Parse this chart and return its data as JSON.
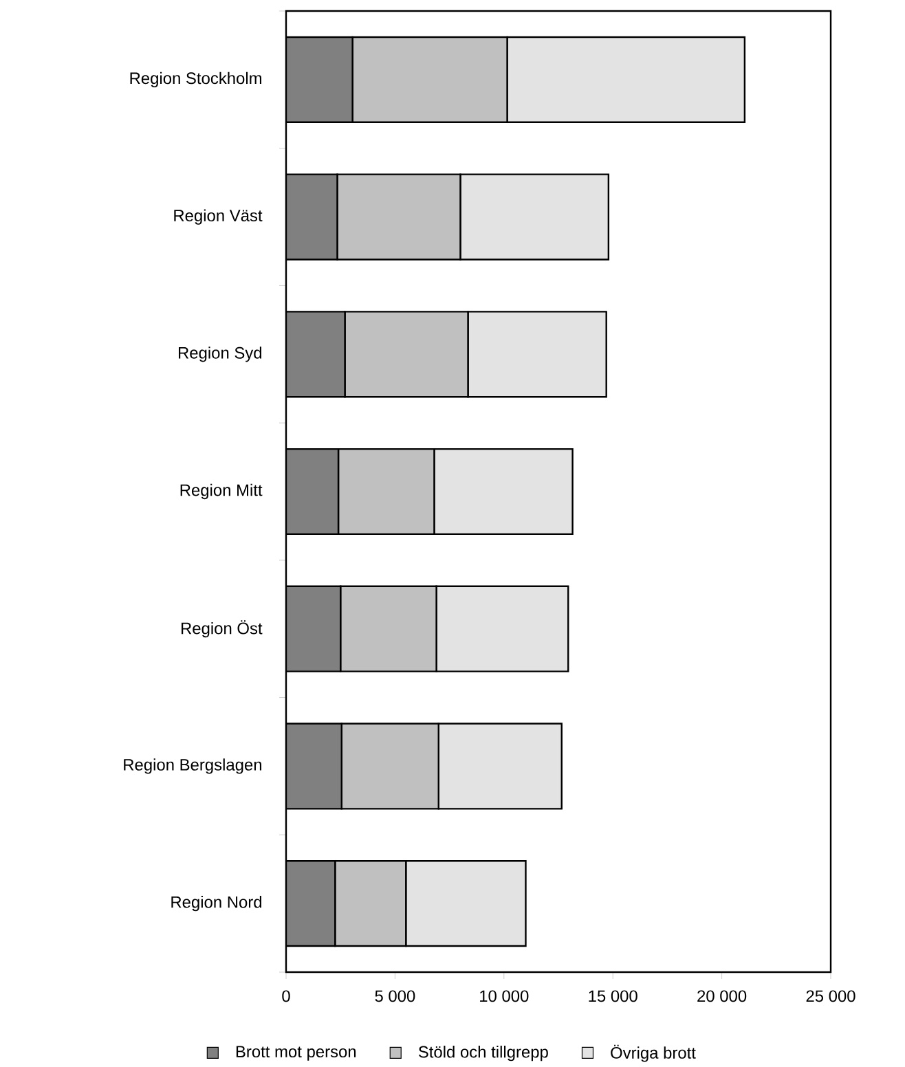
{
  "chart_data": {
    "type": "bar",
    "orientation": "horizontal",
    "stacked": true,
    "categories": [
      "Region Stockholm",
      "Region Väst",
      "Region Syd",
      "Region Mitt",
      "Region Öst",
      "Region Bergslagen",
      "Region Nord"
    ],
    "series": [
      {
        "name": "Brott mot person",
        "color": "#808080",
        "values": [
          3050,
          2350,
          2700,
          2400,
          2500,
          2550,
          2250
        ]
      },
      {
        "name": "Stöld och tillgrepp",
        "color": "#c0c0c0",
        "values": [
          7100,
          5650,
          5650,
          4400,
          4400,
          4450,
          3250
        ]
      },
      {
        "name": "Övriga brott",
        "color": "#e3e3e3",
        "values": [
          10900,
          6800,
          6350,
          6350,
          6050,
          5650,
          5500
        ]
      }
    ],
    "xlim": [
      0,
      25000
    ],
    "xticks": [
      0,
      {
        "value": 5000,
        "label": "5 000"
      },
      {
        "value": 10000,
        "label": "10 000"
      },
      {
        "value": 15000,
        "label": "15 000"
      },
      {
        "value": 20000,
        "label": "20 000"
      },
      {
        "value": 25000,
        "label": "25 000"
      }
    ],
    "legend": "bottom"
  }
}
